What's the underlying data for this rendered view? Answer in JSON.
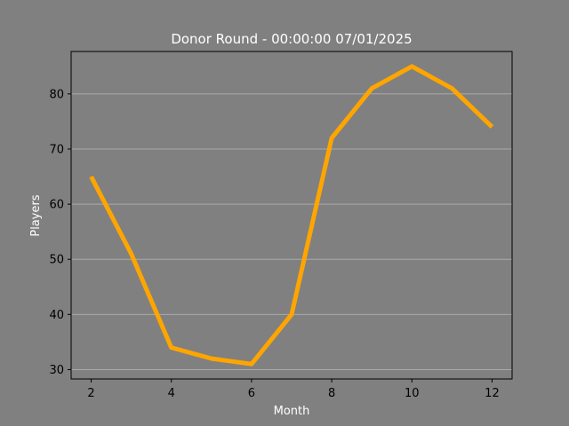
{
  "chart_data": {
    "type": "line",
    "title": "Donor Round - 00:00:00 07/01/2025",
    "xlabel": "Month",
    "ylabel": "Players",
    "x": [
      2,
      3,
      4,
      5,
      6,
      7,
      8,
      9,
      10,
      11,
      12
    ],
    "series": [
      {
        "values": [
          65,
          51,
          34,
          32,
          31,
          40,
          72,
          81,
          85,
          81,
          74
        ]
      }
    ],
    "xlim": [
      1.5,
      12.5
    ],
    "ylim": [
      28.3,
      87.7
    ],
    "xticks": [
      2,
      4,
      6,
      8,
      10,
      12
    ],
    "yticks": [
      30,
      40,
      50,
      60,
      70,
      80
    ],
    "grid": "horizontal",
    "colors": {
      "background": "#808080",
      "line": "#ffa500",
      "grid": "#b0b0b0",
      "text": "#ffffff",
      "ticks": "#000000"
    }
  }
}
